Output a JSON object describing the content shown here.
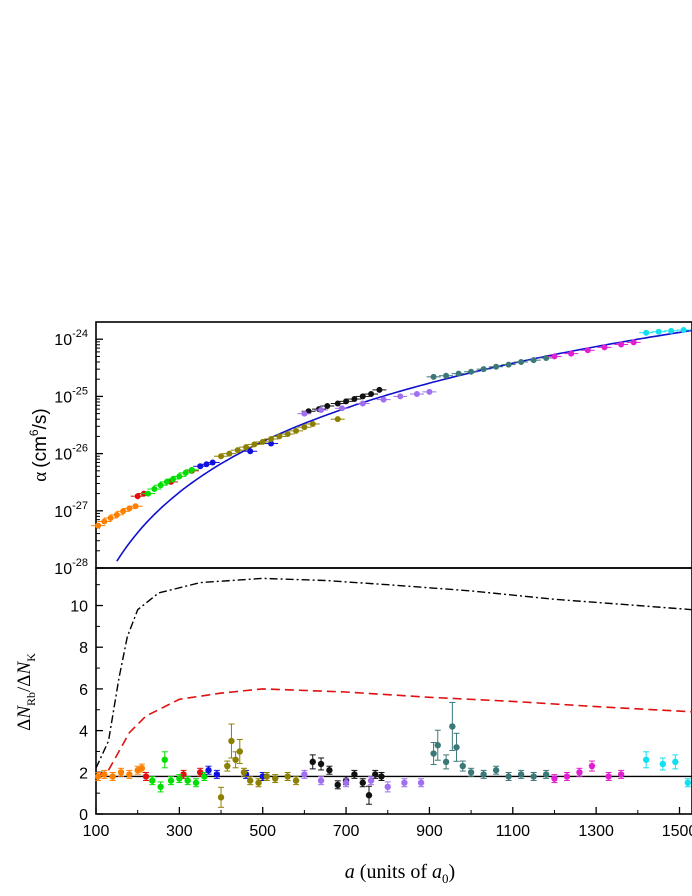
{
  "chart_data": [
    {
      "type": "scatter",
      "panel": "top",
      "ylabel_symbol": "α",
      "ylabel_unit_pre": "(cm",
      "ylabel_unit_exp": "6",
      "ylabel_unit_post": "/s)",
      "xlim": [
        100,
        1530
      ],
      "ylim": [
        1e-28,
        2e-24
      ],
      "yscale": "log",
      "ytick_values": [
        -28,
        -27,
        -26,
        -25,
        -24
      ],
      "ytick_base": "10",
      "grid": false,
      "series": [
        {
          "color": "#ff8000",
          "points": [
            [
              105,
              5.5e-28
            ],
            [
              120,
              6.5e-28
            ],
            [
              135,
              7.5e-28
            ],
            [
              150,
              8.5e-28
            ],
            [
              165,
              9.8e-28
            ],
            [
              180,
              1.1e-27
            ],
            [
              195,
              1.2e-27
            ]
          ]
        },
        {
          "color": "#e01010",
          "points": [
            [
              200,
              1.8e-27
            ],
            [
              215,
              2e-27
            ],
            [
              280,
              3.2e-27
            ],
            [
              330,
              5e-27
            ]
          ]
        },
        {
          "color": "#00e000",
          "points": [
            [
              225,
              2e-27
            ],
            [
              240,
              2.4e-27
            ],
            [
              255,
              2.8e-27
            ],
            [
              270,
              3.2e-27
            ],
            [
              285,
              3.6e-27
            ],
            [
              300,
              4e-27
            ],
            [
              315,
              4.6e-27
            ],
            [
              330,
              5.2e-27
            ]
          ]
        },
        {
          "color": "#1010e0",
          "points": [
            [
              350,
              6e-27
            ],
            [
              365,
              6.5e-27
            ],
            [
              380,
              7e-27
            ],
            [
              470,
              1.1e-26
            ],
            [
              520,
              1.5e-26
            ]
          ]
        },
        {
          "color": "#8c8000",
          "points": [
            [
              400,
              9e-27
            ],
            [
              420,
              1e-26
            ],
            [
              440,
              1.15e-26
            ],
            [
              460,
              1.3e-26
            ],
            [
              480,
              1.45e-26
            ],
            [
              500,
              1.6e-26
            ],
            [
              520,
              1.8e-26
            ],
            [
              540,
              2e-26
            ],
            [
              560,
              2.2e-26
            ],
            [
              580,
              2.5e-26
            ],
            [
              600,
              2.9e-26
            ],
            [
              620,
              3.3e-26
            ],
            [
              680,
              4e-26
            ]
          ]
        },
        {
          "color": "#111111",
          "points": [
            [
              610,
              5.5e-26
            ],
            [
              635,
              6e-26
            ],
            [
              655,
              6.8e-26
            ],
            [
              680,
              7.5e-26
            ],
            [
              700,
              8.2e-26
            ],
            [
              720,
              9e-26
            ],
            [
              740,
              1e-25
            ],
            [
              760,
              1.1e-25
            ],
            [
              780,
              1.3e-25
            ]
          ]
        },
        {
          "color": "#a070f0",
          "points": [
            [
              600,
              5e-26
            ],
            [
              640,
              5.8e-26
            ],
            [
              690,
              6.2e-26
            ],
            [
              740,
              7.5e-26
            ],
            [
              790,
              8.8e-26
            ],
            [
              830,
              1e-25
            ],
            [
              870,
              1.1e-25
            ],
            [
              900,
              1.2e-25
            ]
          ]
        },
        {
          "color": "#3c7878",
          "points": [
            [
              910,
              2.2e-25
            ],
            [
              940,
              2.3e-25
            ],
            [
              970,
              2.5e-25
            ],
            [
              1000,
              2.7e-25
            ],
            [
              1030,
              3e-25
            ],
            [
              1060,
              3.3e-25
            ],
            [
              1090,
              3.6e-25
            ],
            [
              1120,
              4e-25
            ],
            [
              1150,
              4.3e-25
            ],
            [
              1180,
              4.7e-25
            ]
          ]
        },
        {
          "color": "#e020d0",
          "points": [
            [
              1200,
              5e-25
            ],
            [
              1240,
              5.6e-25
            ],
            [
              1280,
              6.4e-25
            ],
            [
              1320,
              7.2e-25
            ],
            [
              1360,
              8.1e-25
            ],
            [
              1390,
              8.8e-25
            ]
          ]
        },
        {
          "color": "#10e0f0",
          "points": [
            [
              1420,
              1.3e-24
            ],
            [
              1450,
              1.35e-24
            ],
            [
              1480,
              1.4e-24
            ],
            [
              1510,
              1.45e-24
            ]
          ]
        }
      ],
      "fit": {
        "color": "#1010d0",
        "exponent": 4,
        "coefficient": 2.6e-37
      }
    },
    {
      "type": "scatter",
      "panel": "bottom",
      "xlabel_symbol": "a",
      "xlabel_text": " (units of ",
      "xlabel_sub_symbol": "a",
      "xlabel_sub": "0",
      "xlabel_close": ")",
      "ylabel_delta": "Δ",
      "ylabel_N": "N",
      "ylabel_sub1": "Rb",
      "ylabel_slash": "/",
      "ylabel_sub2": "K",
      "xlim": [
        100,
        1530
      ],
      "ylim": [
        0,
        11.8
      ],
      "xtick_labels": [
        "100",
        "300",
        "500",
        "700",
        "900",
        "1100",
        "1300",
        "1500"
      ],
      "ytick_labels": [
        "0",
        "2",
        "4",
        "6",
        "8",
        "10"
      ],
      "grid": false,
      "reference_line": {
        "y": 1.8,
        "color": "#000000"
      },
      "dash_dot_curve": {
        "color": "#000000",
        "points": [
          [
            100,
            2.2
          ],
          [
            130,
            3.5
          ],
          [
            155,
            6.5
          ],
          [
            175,
            8.5
          ],
          [
            200,
            9.8
          ],
          [
            250,
            10.6
          ],
          [
            350,
            11.1
          ],
          [
            500,
            11.3
          ],
          [
            650,
            11.2
          ],
          [
            800,
            11.0
          ],
          [
            1000,
            10.7
          ],
          [
            1200,
            10.3
          ],
          [
            1400,
            10.0
          ],
          [
            1530,
            9.8
          ]
        ]
      },
      "dashed_curve": {
        "color": "#e01010",
        "points": [
          [
            100,
            1.8
          ],
          [
            130,
            2.1
          ],
          [
            155,
            3.0
          ],
          [
            180,
            3.9
          ],
          [
            220,
            4.7
          ],
          [
            300,
            5.5
          ],
          [
            400,
            5.8
          ],
          [
            500,
            6.0
          ],
          [
            700,
            5.85
          ],
          [
            900,
            5.6
          ],
          [
            1100,
            5.4
          ],
          [
            1300,
            5.15
          ],
          [
            1530,
            4.9
          ]
        ]
      },
      "series": [
        {
          "color": "#ff8000",
          "points": [
            [
              105,
              1.8
            ],
            [
              120,
              1.9
            ],
            [
              140,
              1.8
            ],
            [
              160,
              2.0
            ],
            [
              180,
              1.9
            ],
            [
              200,
              2.1
            ],
            [
              210,
              2.2
            ]
          ]
        },
        {
          "color": "#e01010",
          "points": [
            [
              220,
              1.8
            ],
            [
              310,
              1.9
            ],
            [
              350,
              2.0
            ]
          ]
        },
        {
          "color": "#00e000",
          "points": [
            [
              235,
              1.6
            ],
            [
              255,
              1.3
            ],
            [
              265,
              2.6
            ],
            [
              280,
              1.6
            ],
            [
              300,
              1.7
            ],
            [
              320,
              1.6
            ],
            [
              340,
              1.5
            ],
            [
              360,
              1.8
            ]
          ]
        },
        {
          "color": "#1010e0",
          "points": [
            [
              370,
              2.1
            ],
            [
              390,
              1.9
            ],
            [
              460,
              1.9
            ],
            [
              500,
              1.8
            ]
          ]
        },
        {
          "color": "#8c8000",
          "points": [
            [
              400,
              0.8
            ],
            [
              415,
              2.3
            ],
            [
              425,
              3.5
            ],
            [
              435,
              2.6
            ],
            [
              445,
              3.0
            ],
            [
              455,
              2.0
            ],
            [
              470,
              1.6
            ],
            [
              490,
              1.5
            ],
            [
              510,
              1.8
            ],
            [
              530,
              1.7
            ],
            [
              560,
              1.8
            ],
            [
              580,
              1.6
            ]
          ]
        },
        {
          "color": "#111111",
          "points": [
            [
              620,
              2.5
            ],
            [
              640,
              2.4
            ],
            [
              660,
              2.1
            ],
            [
              680,
              1.4
            ],
            [
              700,
              1.6
            ],
            [
              720,
              1.9
            ],
            [
              740,
              1.5
            ],
            [
              755,
              0.9
            ],
            [
              770,
              1.9
            ],
            [
              785,
              1.8
            ]
          ]
        },
        {
          "color": "#a070f0",
          "points": [
            [
              600,
              1.9
            ],
            [
              640,
              1.6
            ],
            [
              700,
              1.5
            ],
            [
              760,
              1.6
            ],
            [
              800,
              1.3
            ],
            [
              840,
              1.5
            ],
            [
              880,
              1.5
            ]
          ]
        },
        {
          "color": "#3c7878",
          "points": [
            [
              910,
              2.9
            ],
            [
              920,
              3.3
            ],
            [
              940,
              2.5
            ],
            [
              955,
              4.2
            ],
            [
              965,
              3.2
            ],
            [
              980,
              2.3
            ],
            [
              1000,
              2.0
            ],
            [
              1030,
              1.9
            ],
            [
              1060,
              2.1
            ],
            [
              1090,
              1.8
            ],
            [
              1120,
              1.9
            ],
            [
              1150,
              1.8
            ],
            [
              1180,
              1.9
            ]
          ]
        },
        {
          "color": "#e020d0",
          "points": [
            [
              1200,
              1.7
            ],
            [
              1230,
              1.8
            ],
            [
              1260,
              2.0
            ],
            [
              1290,
              2.3
            ],
            [
              1330,
              1.8
            ],
            [
              1360,
              1.9
            ]
          ]
        },
        {
          "color": "#10e0f0",
          "points": [
            [
              1420,
              2.6
            ],
            [
              1460,
              2.4
            ],
            [
              1490,
              2.5
            ],
            [
              1520,
              1.5
            ]
          ]
        }
      ]
    }
  ]
}
